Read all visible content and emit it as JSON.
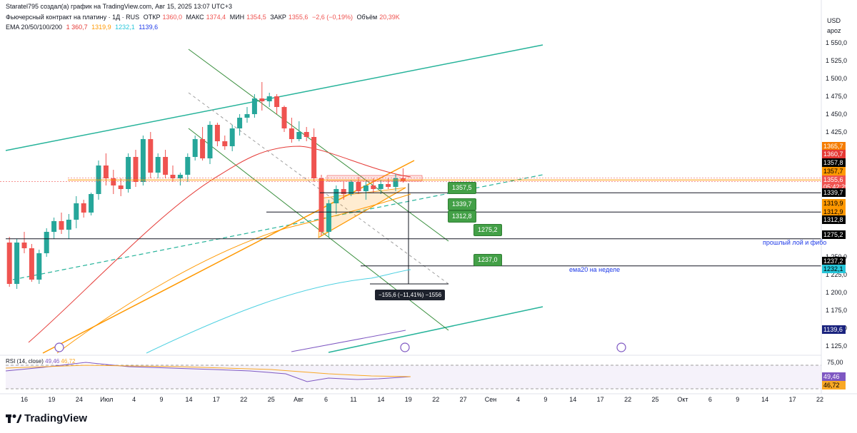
{
  "header": {
    "author": "Staratel795 создал(а) график на TradingView.com, Авг 15, 2025 13:07 UTC+3",
    "symbol": "Фьючерсный контракт на платину · 1Д · RUS",
    "open_label": "ОТКР",
    "open": "1360,0",
    "high_label": "МАКС",
    "high": "1374,4",
    "low_label": "МИН",
    "low": "1354,5",
    "close_label": "ЗАКР",
    "close": "1355,6",
    "change": "−2,6 (−0,19%)",
    "volume_label": "Объём",
    "volume": "20,39K",
    "ema_label": "EMA 20/50/100/200",
    "ema20": "1 360,7",
    "ema50": "1319,9",
    "ema100": "1232,1",
    "ema200": "1139,6"
  },
  "axis": {
    "currency": "USD",
    "mode": "apoz"
  },
  "colors": {
    "up": "#26a69a",
    "down": "#ef5350",
    "ema20": "#e53935",
    "ema50": "#ff9800",
    "ema100": "#4dd0e1",
    "ema200": "#1e3ae8",
    "green_line": "#388e3c",
    "teal_line": "#26b39a",
    "orange_line": "#ff9800"
  },
  "chart_data": {
    "type": "candlestick",
    "y_range": [
      1115,
      1565
    ],
    "y_ticks": [
      "1 550,0",
      "1 525,0",
      "1 500,0",
      "1 475,0",
      "1 450,0",
      "1 425,0",
      "1 250,0",
      "1 225,0",
      "1 200,0",
      "1 175,0",
      "1 150,0",
      "1 125,0"
    ],
    "x_ticks": [
      "16",
      "19",
      "24",
      "Июл",
      "4",
      "9",
      "14",
      "17",
      "22",
      "25",
      "Авг",
      "6",
      "11",
      "14",
      "19",
      "22",
      "27",
      "Сен",
      "4",
      "9",
      "14",
      "17",
      "22",
      "25",
      "Окт",
      "6",
      "9",
      "14",
      "17",
      "22"
    ],
    "candles": [
      [
        1270,
        1278,
        1208,
        1212
      ],
      [
        1212,
        1275,
        1205,
        1270
      ],
      [
        1270,
        1285,
        1255,
        1262
      ],
      [
        1262,
        1268,
        1215,
        1218
      ],
      [
        1218,
        1260,
        1212,
        1255
      ],
      [
        1255,
        1290,
        1250,
        1285
      ],
      [
        1285,
        1305,
        1275,
        1300
      ],
      [
        1300,
        1312,
        1282,
        1288
      ],
      [
        1288,
        1310,
        1275,
        1302
      ],
      [
        1302,
        1335,
        1290,
        1325
      ],
      [
        1325,
        1330,
        1305,
        1312
      ],
      [
        1312,
        1340,
        1308,
        1338
      ],
      [
        1338,
        1385,
        1330,
        1378
      ],
      [
        1378,
        1395,
        1350,
        1360
      ],
      [
        1360,
        1372,
        1338,
        1350
      ],
      [
        1350,
        1360,
        1335,
        1345
      ],
      [
        1345,
        1395,
        1340,
        1390
      ],
      [
        1390,
        1400,
        1348,
        1355
      ],
      [
        1355,
        1420,
        1350,
        1415
      ],
      [
        1415,
        1425,
        1360,
        1368
      ],
      [
        1368,
        1395,
        1360,
        1390
      ],
      [
        1390,
        1400,
        1360,
        1365
      ],
      [
        1365,
        1378,
        1355,
        1360
      ],
      [
        1360,
        1368,
        1350,
        1365
      ],
      [
        1365,
        1395,
        1355,
        1390
      ],
      [
        1390,
        1420,
        1385,
        1415
      ],
      [
        1415,
        1432,
        1385,
        1388
      ],
      [
        1388,
        1440,
        1380,
        1435
      ],
      [
        1435,
        1438,
        1405,
        1412
      ],
      [
        1412,
        1420,
        1400,
        1405
      ],
      [
        1405,
        1435,
        1398,
        1430
      ],
      [
        1430,
        1450,
        1420,
        1445
      ],
      [
        1445,
        1460,
        1438,
        1450
      ],
      [
        1450,
        1478,
        1445,
        1472
      ],
      [
        1472,
        1495,
        1455,
        1468
      ],
      [
        1468,
        1480,
        1460,
        1475
      ],
      [
        1475,
        1478,
        1450,
        1460
      ],
      [
        1460,
        1462,
        1425,
        1430
      ],
      [
        1430,
        1445,
        1410,
        1415
      ],
      [
        1415,
        1440,
        1412,
        1425
      ],
      [
        1425,
        1432,
        1412,
        1418
      ],
      [
        1418,
        1430,
        1355,
        1360
      ],
      [
        1360,
        1365,
        1280,
        1285
      ],
      [
        1285,
        1330,
        1278,
        1325
      ],
      [
        1325,
        1350,
        1310,
        1345
      ],
      [
        1345,
        1355,
        1330,
        1338
      ],
      [
        1338,
        1358,
        1335,
        1355
      ],
      [
        1355,
        1362,
        1338,
        1342
      ],
      [
        1342,
        1356,
        1330,
        1350
      ],
      [
        1350,
        1360,
        1340,
        1345
      ],
      [
        1345,
        1358,
        1338,
        1352
      ],
      [
        1352,
        1360,
        1345,
        1348
      ],
      [
        1348,
        1366,
        1342,
        1360
      ],
      [
        1360,
        1374,
        1354,
        1356
      ]
    ],
    "rsi": {
      "period": 14,
      "value": "49,46",
      "ma": "46,72",
      "upper": "75,00",
      "lower": "25,00",
      "ticks": [
        "75,00"
      ]
    },
    "rsi_label": "RSI (14, close)"
  },
  "price_labels": [
    {
      "value": "1365,7",
      "color": "#f57c00"
    },
    {
      "value": "1360,7",
      "color": "#e53935"
    },
    {
      "value": "1357,8",
      "color": "#000000"
    },
    {
      "value": "1357,7",
      "color": "#ff9800"
    },
    {
      "value": "1355,6",
      "color": "#ef5350"
    },
    {
      "value": "05:42:29",
      "color": "#ef5350"
    },
    {
      "value": "1339,7",
      "color": "#000000"
    },
    {
      "value": "1319,9",
      "color": "#ff9800"
    },
    {
      "value": "1312,9",
      "color": "#ff9800"
    },
    {
      "value": "1312,8",
      "color": "#000000"
    },
    {
      "value": "1275,2",
      "color": "#000000"
    },
    {
      "value": "1237,2",
      "color": "#000000"
    },
    {
      "value": "1232,1",
      "color": "#26c6da"
    },
    {
      "value": "1139,6",
      "color": "#1a237e"
    }
  ],
  "green_labels": [
    "1357,5",
    "1339,7",
    "1312,8",
    "1275,2",
    "1237,0"
  ],
  "annotations": {
    "fibo": "прошлый лой и фибо",
    "ema_week": "ема20 на неделе",
    "measure": "−155,6 (−11,41%) −1556"
  },
  "rsi_axis": {
    "v1": "49,46",
    "v2": "46,72"
  },
  "logo": "TradingView"
}
